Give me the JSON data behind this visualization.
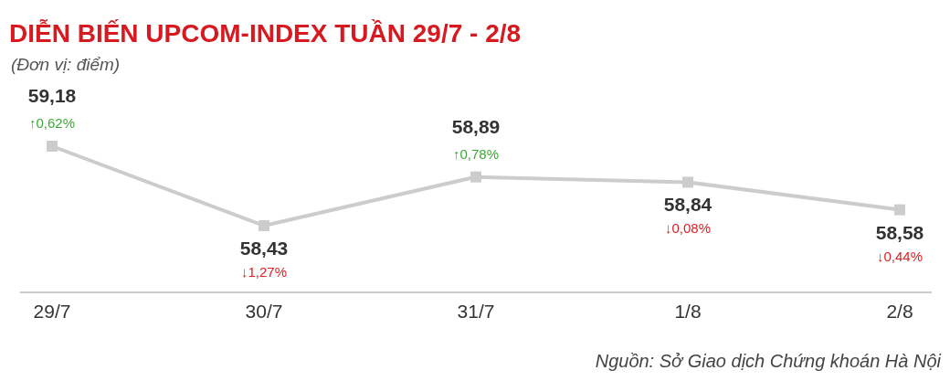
{
  "chart_data": {
    "type": "line",
    "title": "DIỄN BIẾN UPCOM-INDEX TUẦN 29/7 - 2/8",
    "subtitle": "(Đơn vị: điểm)",
    "categories": [
      "29/7",
      "30/7",
      "31/7",
      "1/8",
      "2/8"
    ],
    "series": [
      {
        "color": "#cccccc",
        "values": [
          59.18,
          58.43,
          58.89,
          58.84,
          58.58
        ],
        "value_labels": [
          "59,18",
          "58,43",
          "58,89",
          "58,84",
          "58,58"
        ]
      }
    ],
    "marker": "square",
    "line_style": "solid",
    "annotations": [
      {
        "text": "↑0,62%",
        "x": "29/7",
        "y": 59.18
      },
      {
        "text": "↓1,27%",
        "x": "30/7",
        "y": 58.43
      },
      {
        "text": "↑0,78%",
        "x": "31/7",
        "y": 58.89
      },
      {
        "text": "↓0,08%",
        "x": "1/8",
        "y": 58.84
      },
      {
        "text": "↓0,44%",
        "x": "2/8",
        "y": 58.58
      },
      "Nguồn: Sở Giao dịch Chứng khoán Hà Nội"
    ]
  }
}
